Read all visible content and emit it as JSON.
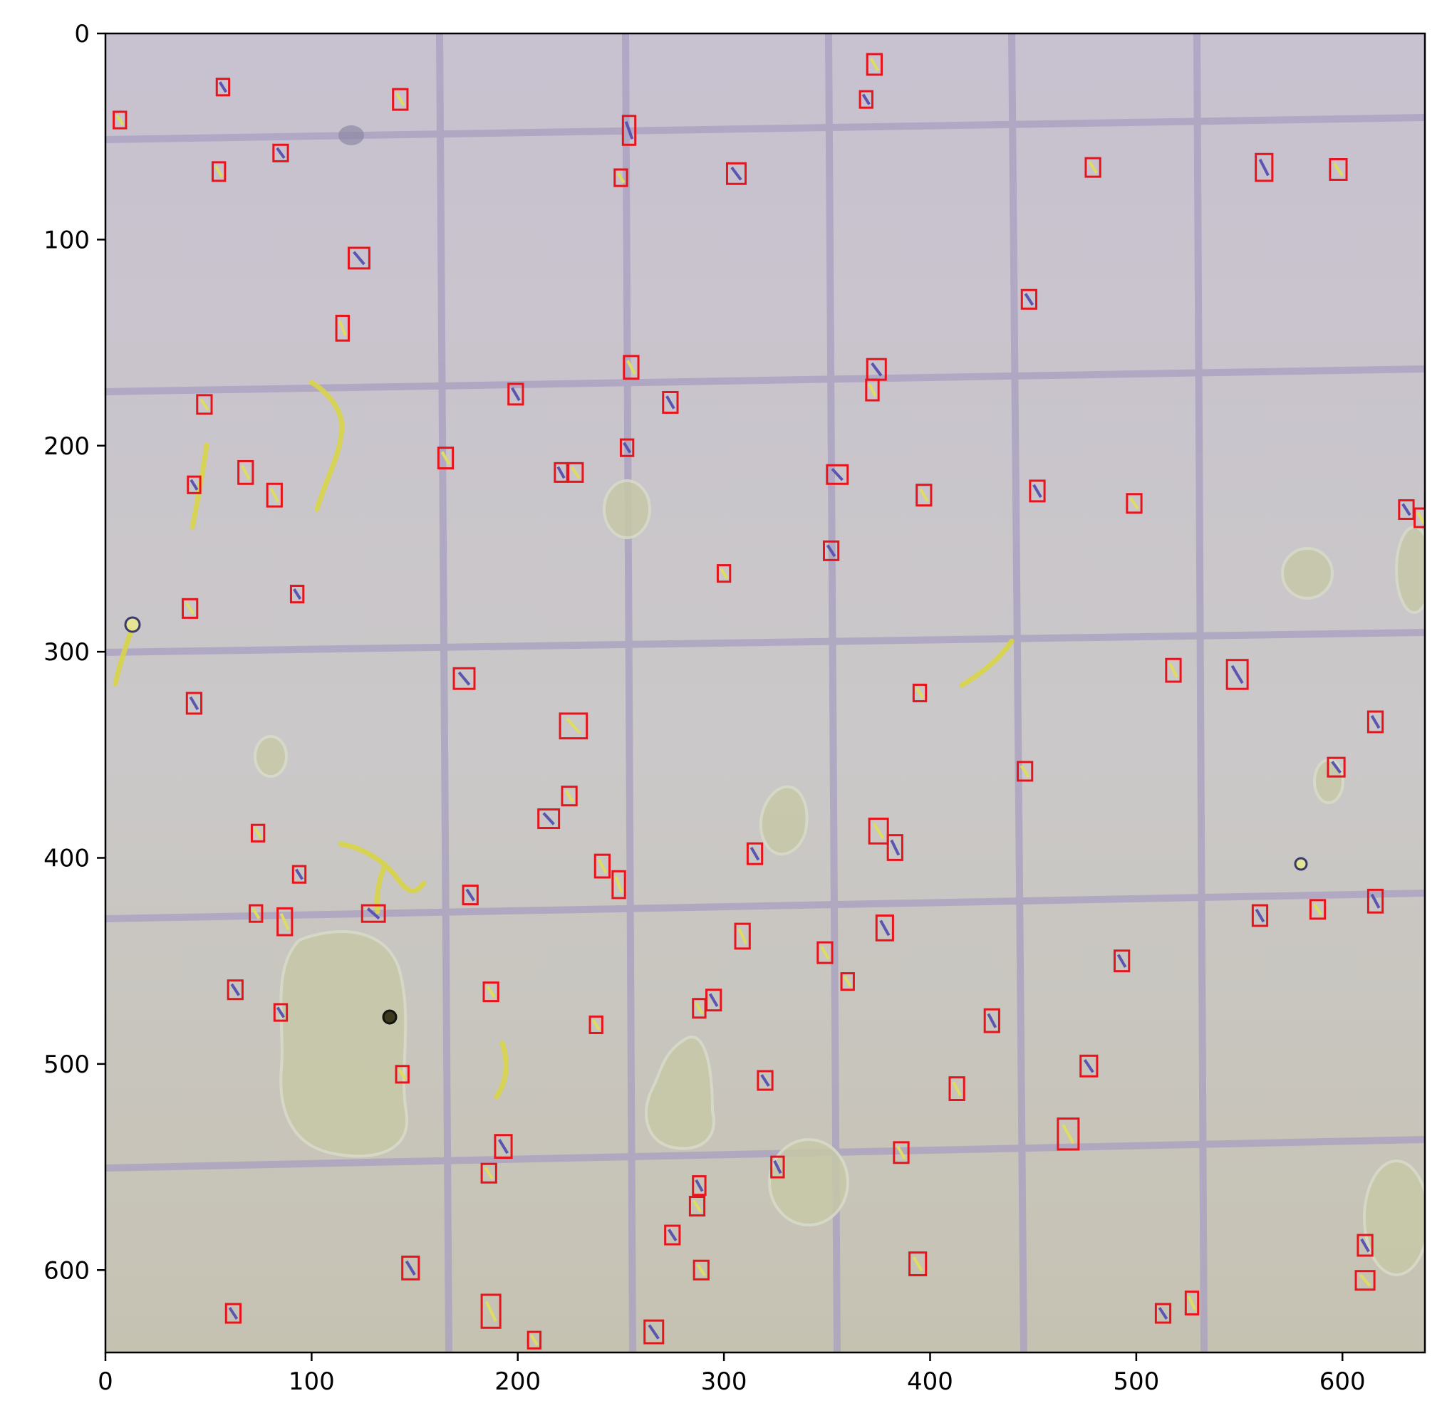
{
  "image": {
    "description_colors": {
      "background": "#c9c3cc",
      "grid_line": "#a89fc0",
      "box_stroke": "#e8141c"
    },
    "x_axis": {
      "range": [
        0,
        640
      ],
      "ticks": [
        {
          "value": 0,
          "label": "0"
        },
        {
          "value": 100,
          "label": "100"
        },
        {
          "value": 200,
          "label": "200"
        },
        {
          "value": 300,
          "label": "300"
        },
        {
          "value": 400,
          "label": "400"
        },
        {
          "value": 500,
          "label": "500"
        },
        {
          "value": 600,
          "label": "600"
        }
      ]
    },
    "y_axis": {
      "range": [
        0,
        640
      ],
      "inverted": true,
      "ticks": [
        {
          "value": 0,
          "label": "0"
        },
        {
          "value": 100,
          "label": "100"
        },
        {
          "value": 200,
          "label": "200"
        },
        {
          "value": 300,
          "label": "300"
        },
        {
          "value": 400,
          "label": "400"
        },
        {
          "value": 500,
          "label": "500"
        },
        {
          "value": 600,
          "label": "600"
        }
      ]
    },
    "detections": [
      [
        7,
        42,
        6,
        8
      ],
      [
        57,
        26,
        6,
        8
      ],
      [
        143,
        32,
        7,
        10
      ],
      [
        85,
        58,
        7,
        8
      ],
      [
        55,
        67,
        6,
        9
      ],
      [
        254,
        47,
        6,
        14
      ],
      [
        250,
        70,
        6,
        8
      ],
      [
        306,
        68,
        9,
        10
      ],
      [
        373,
        15,
        7,
        10
      ],
      [
        369,
        32,
        6,
        8
      ],
      [
        479,
        65,
        7,
        9
      ],
      [
        562,
        65,
        8,
        13
      ],
      [
        598,
        66,
        8,
        10
      ],
      [
        123,
        109,
        10,
        10
      ],
      [
        115,
        143,
        6,
        12
      ],
      [
        448,
        129,
        7,
        9
      ],
      [
        48,
        180,
        7,
        9
      ],
      [
        199,
        175,
        7,
        10
      ],
      [
        255,
        162,
        7,
        11
      ],
      [
        374,
        163,
        9,
        10
      ],
      [
        372,
        173,
        6,
        10
      ],
      [
        274,
        179,
        7,
        10
      ],
      [
        165,
        206,
        7,
        10
      ],
      [
        253,
        201,
        6,
        8
      ],
      [
        68,
        213,
        7,
        11
      ],
      [
        43,
        219,
        6,
        8
      ],
      [
        82,
        224,
        7,
        11
      ],
      [
        221,
        213,
        6,
        9
      ],
      [
        228,
        213,
        7,
        9
      ],
      [
        355,
        214,
        10,
        9
      ],
      [
        397,
        224,
        7,
        10
      ],
      [
        452,
        222,
        7,
        10
      ],
      [
        499,
        228,
        7,
        9
      ],
      [
        631,
        231,
        7,
        9
      ],
      [
        638,
        235,
        6,
        9
      ],
      [
        352,
        251,
        7,
        9
      ],
      [
        300,
        262,
        6,
        8
      ],
      [
        93,
        272,
        6,
        8
      ],
      [
        41,
        279,
        7,
        9
      ],
      [
        174,
        313,
        10,
        10
      ],
      [
        518,
        309,
        7,
        11
      ],
      [
        549,
        311,
        10,
        14
      ],
      [
        395,
        320,
        6,
        8
      ],
      [
        43,
        325,
        7,
        10
      ],
      [
        227,
        336,
        13,
        12
      ],
      [
        616,
        334,
        7,
        10
      ],
      [
        446,
        358,
        7,
        9
      ],
      [
        597,
        356,
        8,
        9
      ],
      [
        225,
        370,
        7,
        9
      ],
      [
        215,
        381,
        10,
        9
      ],
      [
        375,
        387,
        9,
        12
      ],
      [
        383,
        395,
        7,
        12
      ],
      [
        74,
        388,
        6,
        8
      ],
      [
        315,
        398,
        7,
        10
      ],
      [
        241,
        404,
        7,
        11
      ],
      [
        94,
        408,
        6,
        8
      ],
      [
        249,
        413,
        6,
        13
      ],
      [
        177,
        418,
        7,
        9
      ],
      [
        73,
        427,
        6,
        8
      ],
      [
        130,
        427,
        11,
        8
      ],
      [
        87,
        431,
        7,
        13
      ],
      [
        378,
        434,
        8,
        12
      ],
      [
        309,
        438,
        7,
        12
      ],
      [
        560,
        428,
        7,
        10
      ],
      [
        588,
        425,
        7,
        9
      ],
      [
        616,
        421,
        7,
        11
      ],
      [
        349,
        446,
        7,
        10
      ],
      [
        493,
        450,
        7,
        10
      ],
      [
        360,
        460,
        6,
        8
      ],
      [
        63,
        464,
        7,
        9
      ],
      [
        187,
        465,
        7,
        9
      ],
      [
        295,
        469,
        7,
        10
      ],
      [
        288,
        473,
        6,
        9
      ],
      [
        85,
        475,
        6,
        8
      ],
      [
        238,
        481,
        6,
        8
      ],
      [
        430,
        479,
        7,
        11
      ],
      [
        144,
        505,
        6,
        8
      ],
      [
        320,
        508,
        7,
        9
      ],
      [
        413,
        512,
        7,
        11
      ],
      [
        477,
        501,
        8,
        10
      ],
      [
        467,
        534,
        10,
        15
      ],
      [
        193,
        540,
        8,
        11
      ],
      [
        386,
        543,
        7,
        10
      ],
      [
        326,
        550,
        6,
        10
      ],
      [
        186,
        553,
        7,
        9
      ],
      [
        288,
        559,
        6,
        9
      ],
      [
        287,
        569,
        7,
        9
      ],
      [
        275,
        583,
        7,
        9
      ],
      [
        394,
        597,
        8,
        11
      ],
      [
        148,
        599,
        8,
        11
      ],
      [
        289,
        600,
        7,
        9
      ],
      [
        611,
        588,
        7,
        10
      ],
      [
        611,
        605,
        9,
        9
      ],
      [
        62,
        621,
        7,
        9
      ],
      [
        187,
        620,
        9,
        16
      ],
      [
        266,
        630,
        9,
        11
      ],
      [
        208,
        634,
        6,
        8
      ],
      [
        513,
        621,
        7,
        9
      ],
      [
        527,
        616,
        6,
        11
      ]
    ]
  }
}
